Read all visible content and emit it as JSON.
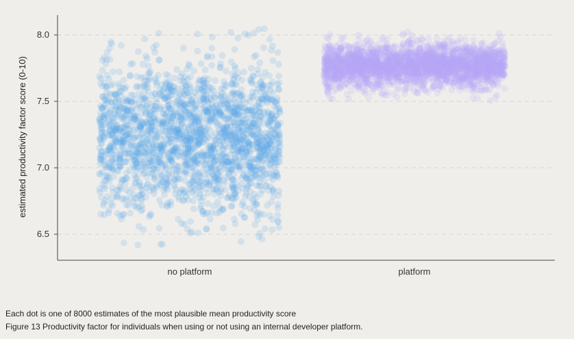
{
  "chart_data": {
    "type": "scatter",
    "title": "",
    "xlabel": "",
    "ylabel": "estimated productivity factor score (0-10)",
    "categories": [
      "no platform",
      "platform"
    ],
    "ylim": [
      6.3,
      8.15
    ],
    "yticks": [
      6.5,
      7.0,
      7.5,
      8.0
    ],
    "grid": "horizontal dashed",
    "series": [
      {
        "category": "no platform",
        "color": "#5aa5ea",
        "estimates": 4000,
        "center": 7.23,
        "range": [
          6.38,
          8.05
        ]
      },
      {
        "category": "platform",
        "color": "#b7a9fb",
        "estimates": 4000,
        "center": 7.77,
        "range": [
          7.5,
          8.04
        ]
      }
    ]
  },
  "note": "Each dot is one of 8000 estimates of the most plausible mean productivity score",
  "figure_caption": "Figure 13 Productivity factor for individuals when using or not using an internal developer platform."
}
